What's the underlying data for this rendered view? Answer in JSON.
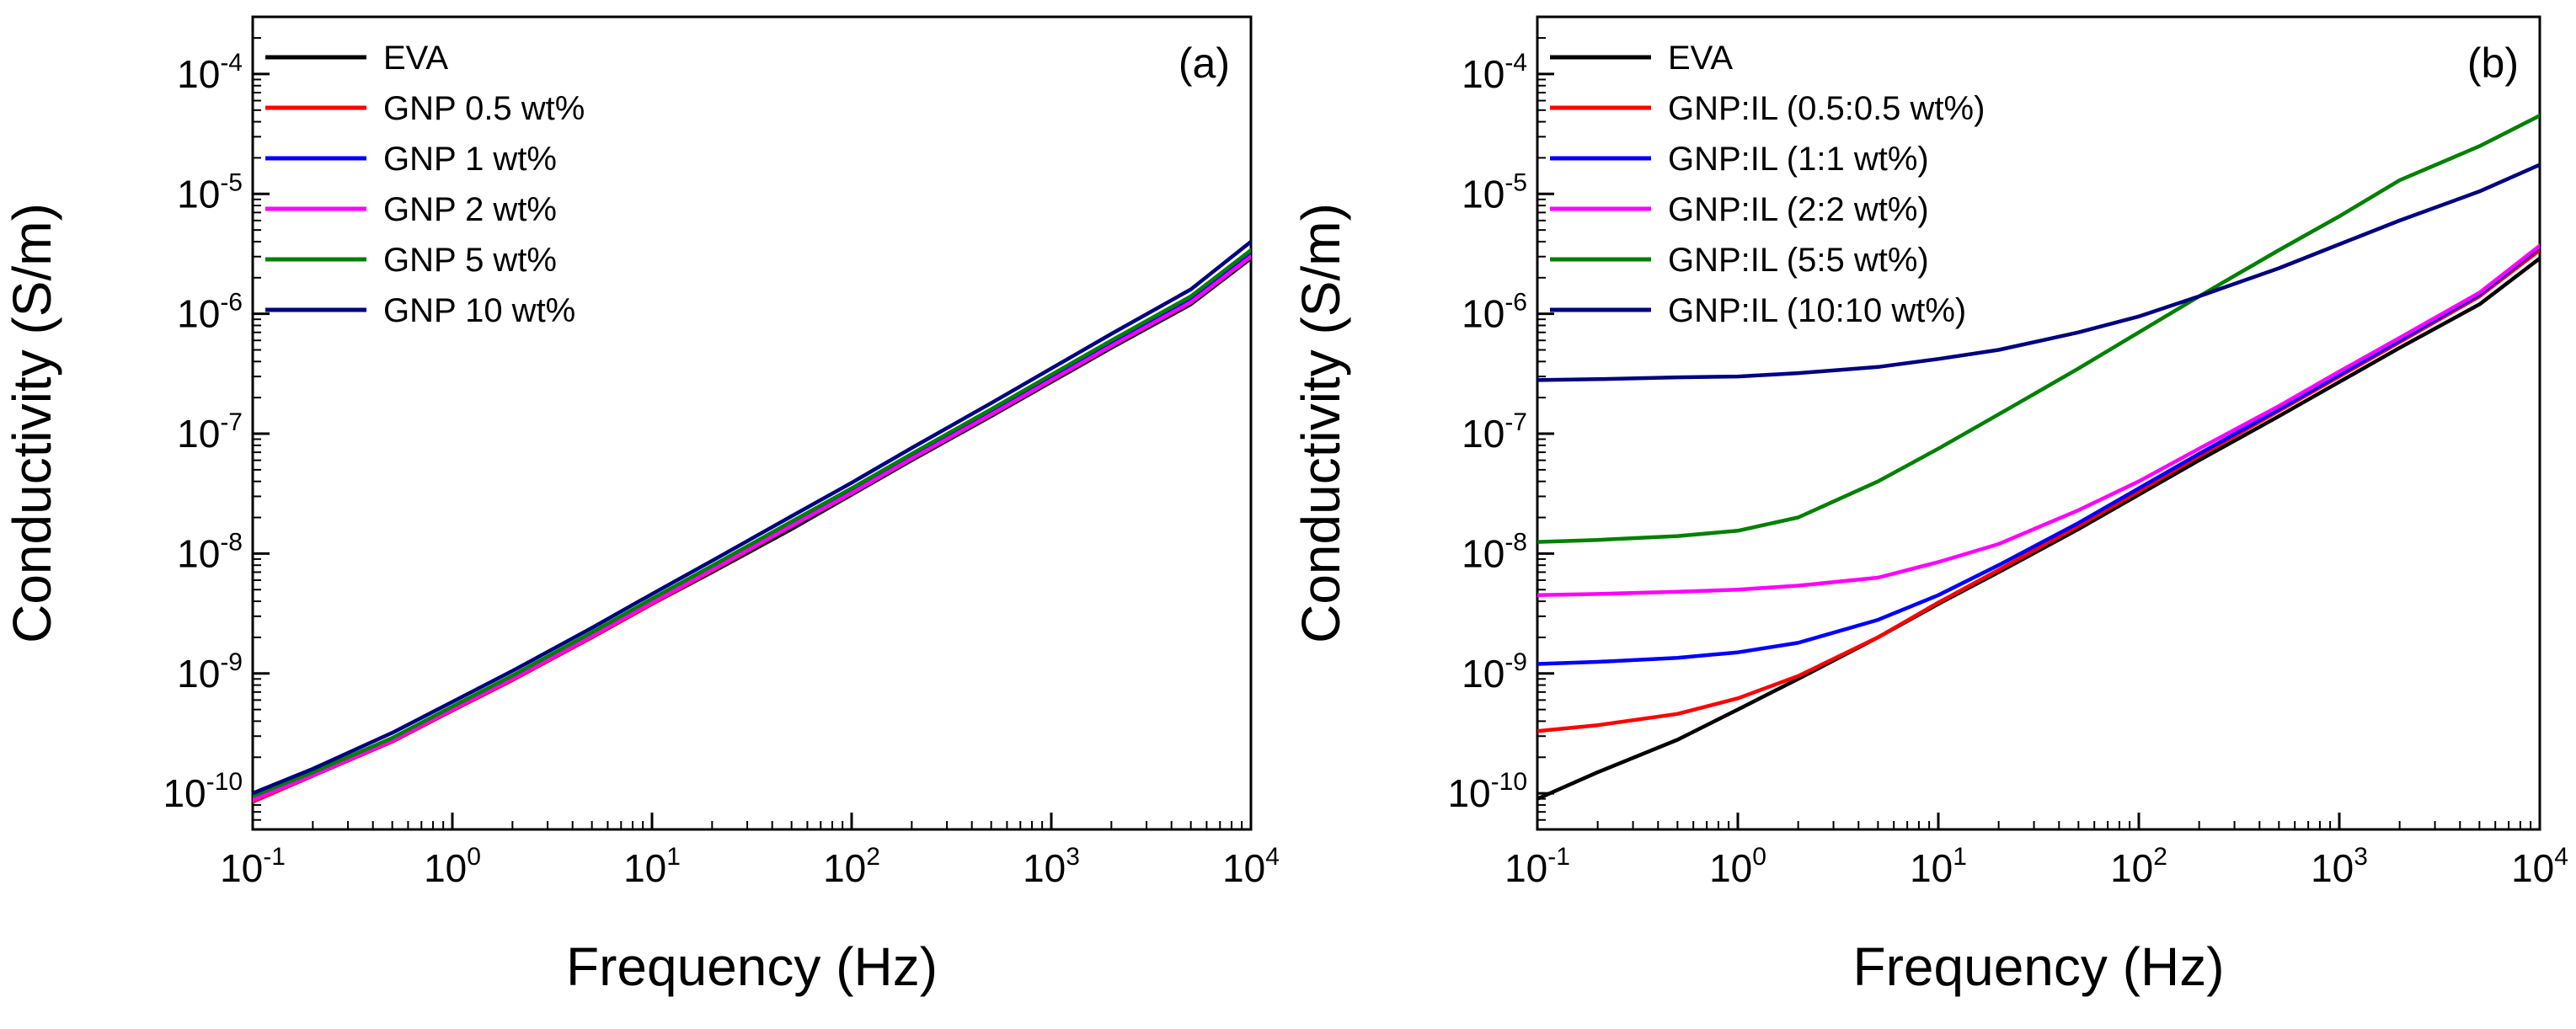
{
  "chart_data": [
    {
      "type": "line",
      "panel_label": "(a)",
      "xlabel": "Frequency (Hz)",
      "ylabel": "Conductivity (S/m)",
      "x_scale": "log",
      "y_scale": "log",
      "xlim": [
        0.1,
        10000
      ],
      "ylim": [
        5e-11,
        0.0003
      ],
      "x_ticks": [
        {
          "base": "10",
          "exp": "-1",
          "value": 0.1
        },
        {
          "base": "10",
          "exp": "0",
          "value": 1
        },
        {
          "base": "10",
          "exp": "1",
          "value": 10
        },
        {
          "base": "10",
          "exp": "2",
          "value": 100
        },
        {
          "base": "10",
          "exp": "3",
          "value": 1000
        },
        {
          "base": "10",
          "exp": "4",
          "value": 10000
        }
      ],
      "y_ticks": [
        {
          "base": "10",
          "exp": "-10",
          "value": 1e-10
        },
        {
          "base": "10",
          "exp": "-9",
          "value": 1e-09
        },
        {
          "base": "10",
          "exp": "-8",
          "value": 1e-08
        },
        {
          "base": "10",
          "exp": "-7",
          "value": 1e-07
        },
        {
          "base": "10",
          "exp": "-6",
          "value": 1e-06
        },
        {
          "base": "10",
          "exp": "-5",
          "value": 1e-05
        },
        {
          "base": "10",
          "exp": "-4",
          "value": 0.0001
        }
      ],
      "legend_position": "top-left",
      "x": [
        0.1,
        0.2,
        0.5,
        1,
        2,
        5,
        10,
        20,
        50,
        100,
        200,
        500,
        1000,
        2000,
        5000,
        10000
      ],
      "series": [
        {
          "name": "EVA",
          "color": "#000000",
          "values": [
            9e-11,
            1.5e-10,
            2.8e-10,
            5e-10,
            9e-10,
            2e-09,
            3.8e-09,
            7e-09,
            1.6e-08,
            3.1e-08,
            6e-08,
            1.4e-07,
            2.7e-07,
            5.2e-07,
            1.2e-06,
            2.9e-06
          ]
        },
        {
          "name": "GNP 0.5 wt%",
          "color": "#ff0000",
          "values": [
            8.5e-11,
            1.4e-10,
            2.7e-10,
            4.9e-10,
            8.8e-10,
            2e-09,
            3.8e-09,
            7.2e-09,
            1.7e-08,
            3.2e-08,
            6.2e-08,
            1.45e-07,
            2.8e-07,
            5.4e-07,
            1.25e-06,
            3e-06
          ]
        },
        {
          "name": "GNP 1 wt%",
          "color": "#0000ff",
          "values": [
            9e-11,
            1.45e-10,
            2.8e-10,
            5.1e-10,
            9.2e-10,
            2.1e-09,
            4e-09,
            7.5e-09,
            1.75e-08,
            3.3e-08,
            6.4e-08,
            1.5e-07,
            2.9e-07,
            5.6e-07,
            1.3e-06,
            3.1e-06
          ]
        },
        {
          "name": "GNP 2 wt%",
          "color": "#ff00ff",
          "values": [
            8.8e-11,
            1.42e-10,
            2.75e-10,
            5e-10,
            9e-10,
            2.05e-09,
            3.9e-09,
            7.3e-09,
            1.7e-08,
            3.2e-08,
            6.2e-08,
            1.45e-07,
            2.8e-07,
            5.4e-07,
            1.25e-06,
            3e-06
          ]
        },
        {
          "name": "GNP 5 wt%",
          "color": "#008000",
          "values": [
            9.5e-11,
            1.5e-10,
            2.9e-10,
            5.3e-10,
            9.6e-10,
            2.2e-09,
            4.2e-09,
            7.9e-09,
            1.85e-08,
            3.5e-08,
            6.8e-08,
            1.6e-07,
            3.1e-07,
            6e-07,
            1.4e-06,
            3.4e-06
          ]
        },
        {
          "name": "GNP 10 wt%",
          "color": "#000080",
          "values": [
            1e-10,
            1.6e-10,
            3.2e-10,
            5.8e-10,
            1.05e-09,
            2.4e-09,
            4.6e-09,
            8.7e-09,
            2.05e-08,
            3.9e-08,
            7.6e-08,
            1.8e-07,
            3.5e-07,
            6.8e-07,
            1.6e-06,
            4e-06
          ]
        }
      ]
    },
    {
      "type": "line",
      "panel_label": "(b)",
      "xlabel": "Frequency (Hz)",
      "ylabel": "Conductivity (S/m)",
      "x_scale": "log",
      "y_scale": "log",
      "xlim": [
        0.1,
        10000
      ],
      "ylim": [
        5e-11,
        0.0003
      ],
      "x_ticks": [
        {
          "base": "10",
          "exp": "-1",
          "value": 0.1
        },
        {
          "base": "10",
          "exp": "0",
          "value": 1
        },
        {
          "base": "10",
          "exp": "1",
          "value": 10
        },
        {
          "base": "10",
          "exp": "2",
          "value": 100
        },
        {
          "base": "10",
          "exp": "3",
          "value": 1000
        },
        {
          "base": "10",
          "exp": "4",
          "value": 10000
        }
      ],
      "y_ticks": [
        {
          "base": "10",
          "exp": "-10",
          "value": 1e-10
        },
        {
          "base": "10",
          "exp": "-9",
          "value": 1e-09
        },
        {
          "base": "10",
          "exp": "-8",
          "value": 1e-08
        },
        {
          "base": "10",
          "exp": "-7",
          "value": 1e-07
        },
        {
          "base": "10",
          "exp": "-6",
          "value": 1e-06
        },
        {
          "base": "10",
          "exp": "-5",
          "value": 1e-05
        },
        {
          "base": "10",
          "exp": "-4",
          "value": 0.0001
        }
      ],
      "legend_position": "top-left",
      "x": [
        0.1,
        0.2,
        0.5,
        1,
        2,
        5,
        10,
        20,
        50,
        100,
        200,
        500,
        1000,
        2000,
        5000,
        10000
      ],
      "series": [
        {
          "name": "EVA",
          "color": "#000000",
          "values": [
            9e-11,
            1.5e-10,
            2.8e-10,
            5e-10,
            9e-10,
            2e-09,
            3.8e-09,
            7e-09,
            1.6e-08,
            3.1e-08,
            6e-08,
            1.4e-07,
            2.7e-07,
            5.2e-07,
            1.2e-06,
            2.9e-06
          ]
        },
        {
          "name": "GNP:IL (0.5:0.5 wt%)",
          "color": "#ff0000",
          "values": [
            3.3e-10,
            3.7e-10,
            4.6e-10,
            6.2e-10,
            9.5e-10,
            2e-09,
            3.9e-09,
            7.3e-09,
            1.7e-08,
            3.3e-08,
            6.5e-08,
            1.55e-07,
            3e-07,
            5.8e-07,
            1.4e-06,
            3.4e-06
          ]
        },
        {
          "name": "GNP:IL (1:1 wt%)",
          "color": "#0000ff",
          "values": [
            1.2e-09,
            1.25e-09,
            1.35e-09,
            1.5e-09,
            1.8e-09,
            2.8e-09,
            4.5e-09,
            8e-09,
            1.8e-08,
            3.5e-08,
            6.8e-08,
            1.6e-07,
            3.1e-07,
            6e-07,
            1.45e-06,
            3.6e-06
          ]
        },
        {
          "name": "GNP:IL (2:2 wt%)",
          "color": "#ff00ff",
          "values": [
            4.5e-09,
            4.6e-09,
            4.8e-09,
            5e-09,
            5.4e-09,
            6.3e-09,
            8.5e-09,
            1.2e-08,
            2.3e-08,
            4e-08,
            7.5e-08,
            1.7e-07,
            3.3e-07,
            6.3e-07,
            1.5e-06,
            3.7e-06
          ]
        },
        {
          "name": "GNP:IL (5:5 wt%)",
          "color": "#008000",
          "values": [
            1.25e-08,
            1.3e-08,
            1.4e-08,
            1.55e-08,
            2e-08,
            4e-08,
            7.5e-08,
            1.45e-07,
            3.5e-07,
            7e-07,
            1.4e-06,
            3.4e-06,
            6.5e-06,
            1.3e-05,
            2.5e-05,
            4.5e-05
          ]
        },
        {
          "name": "GNP:IL (10:10 wt%)",
          "color": "#000080",
          "values": [
            2.8e-07,
            2.85e-07,
            2.95e-07,
            3e-07,
            3.2e-07,
            3.6e-07,
            4.2e-07,
            5e-07,
            7e-07,
            9.5e-07,
            1.4e-06,
            2.4e-06,
            3.8e-06,
            6e-06,
            1.05e-05,
            1.75e-05
          ]
        }
      ]
    }
  ]
}
